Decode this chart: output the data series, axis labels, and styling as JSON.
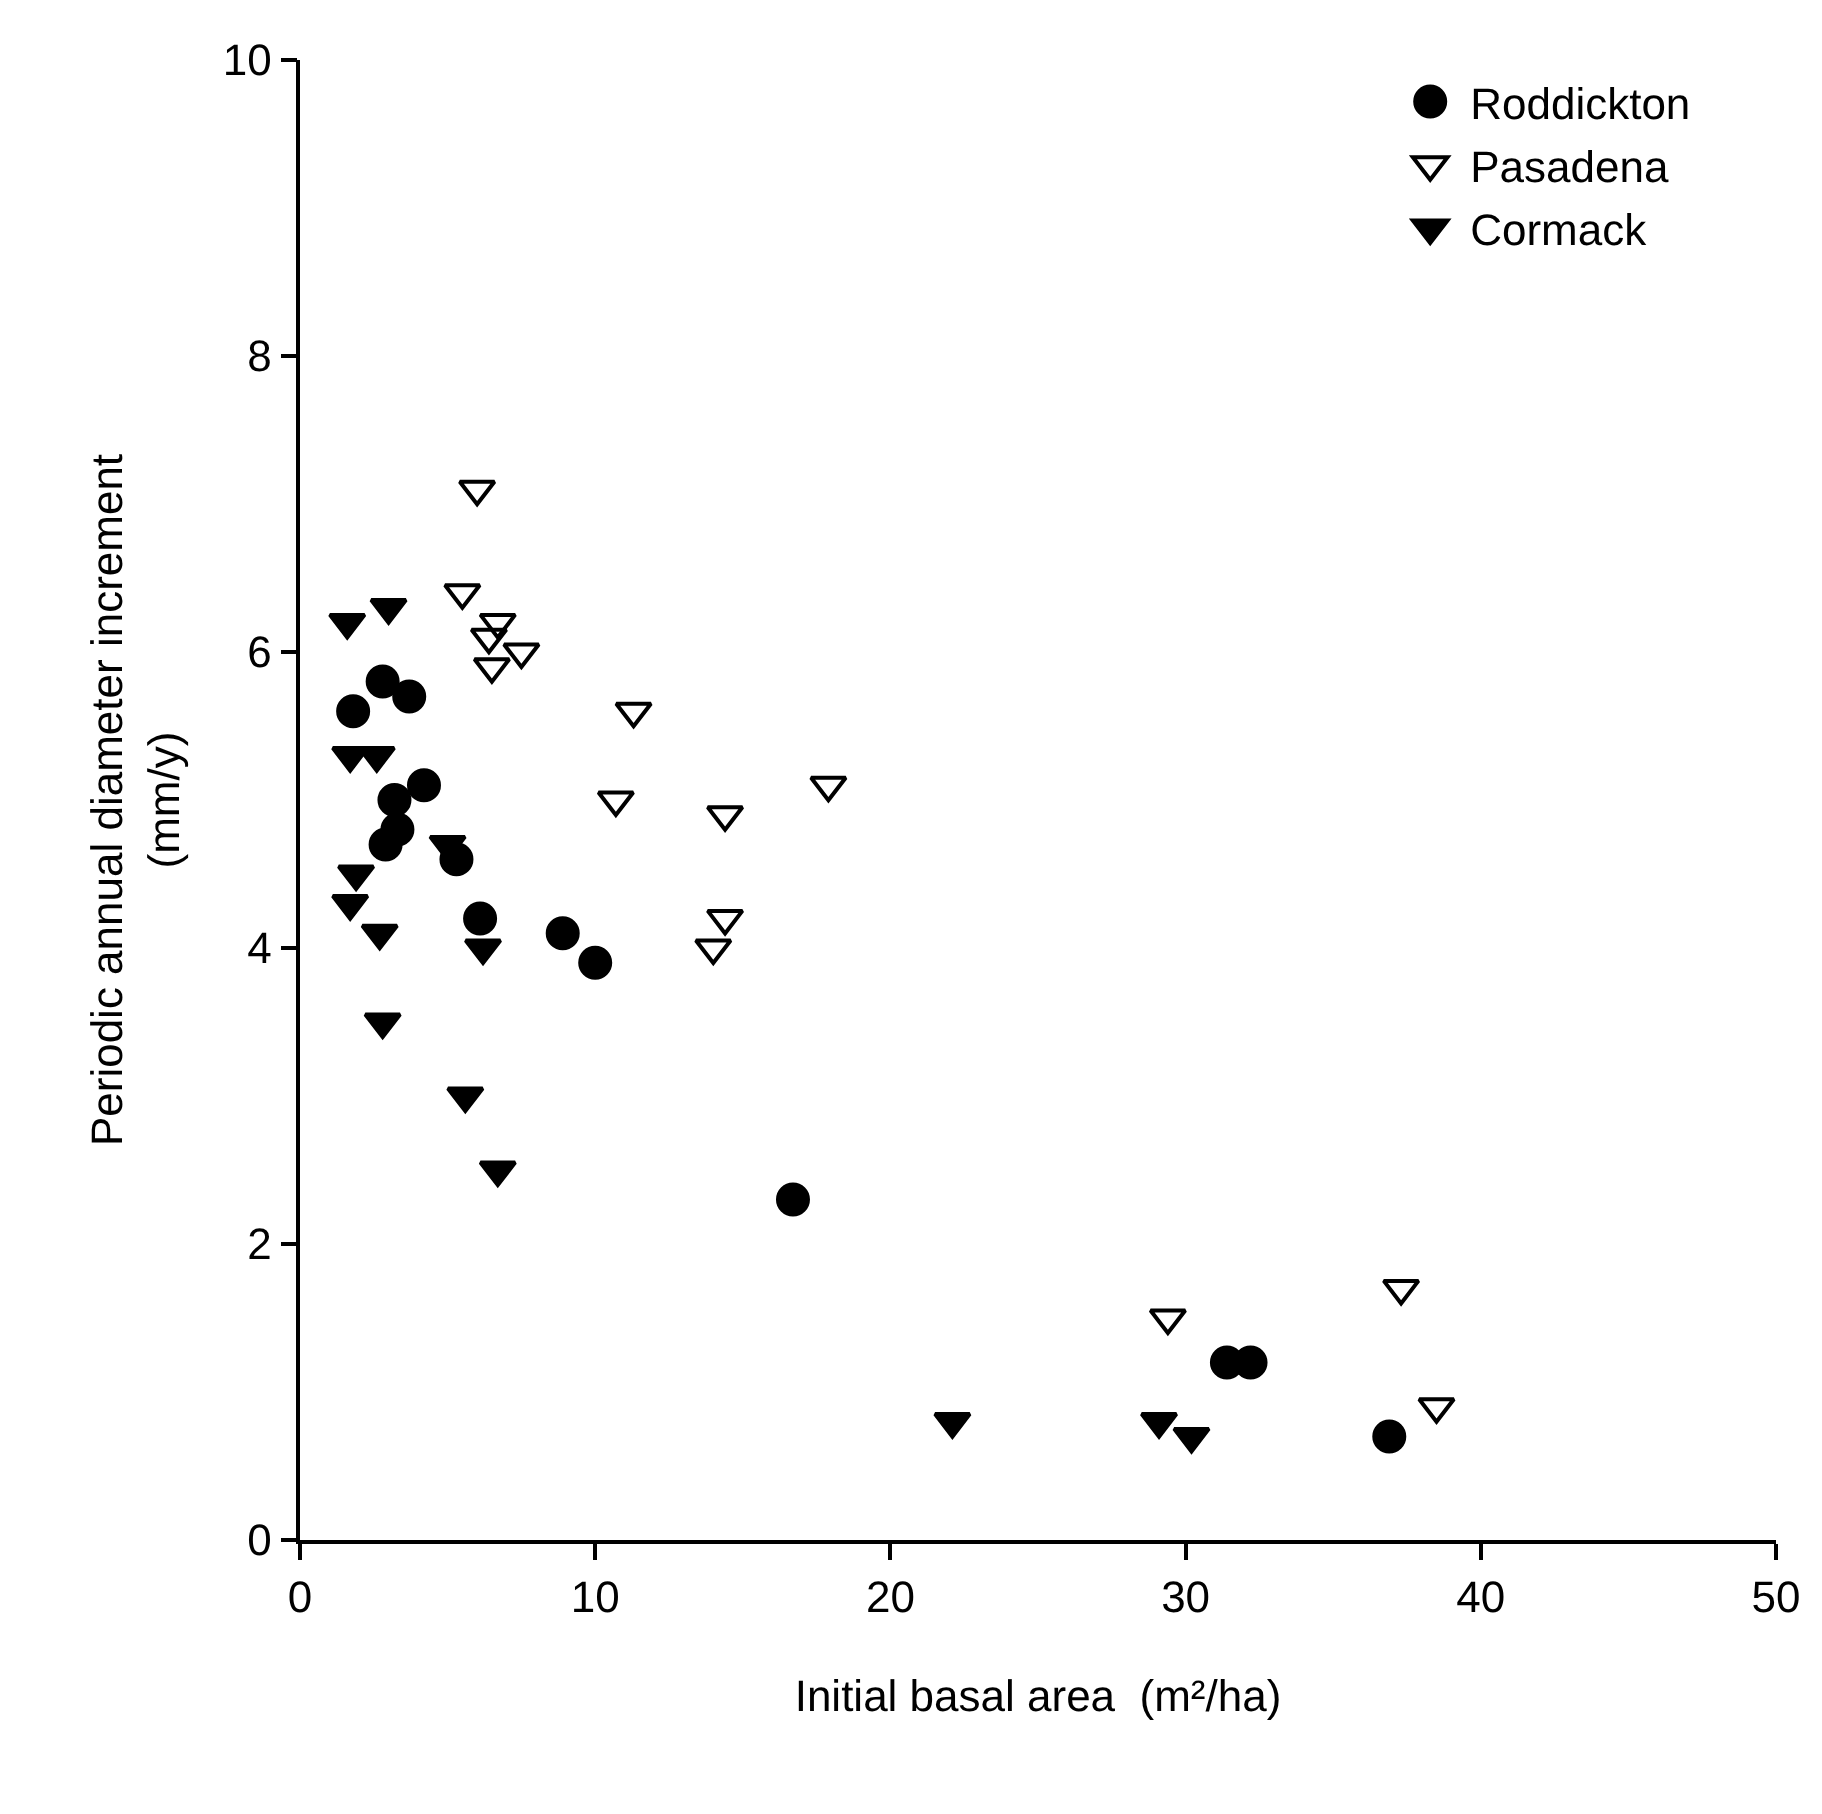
{
  "chart_data": {
    "type": "scatter",
    "xlabel": "Initial basal area  (m²/ha)",
    "ylabel": "Periodic annual diameter increment\n(mm/y)",
    "xlim": [
      0,
      50
    ],
    "xticks": [
      0,
      10,
      20,
      30,
      40,
      50
    ],
    "ylim": [
      0,
      10
    ],
    "yticks": [
      0,
      2,
      4,
      6,
      8,
      10
    ],
    "legend": "top right",
    "series": [
      {
        "name": "Roddickton",
        "color": "#000000",
        "marker": "circle",
        "x": [
          1.8,
          2.8,
          3.7,
          4.2,
          3.2,
          3.3,
          2.9,
          5.3,
          6.1,
          8.9,
          10.0,
          16.7,
          31.4,
          32.2,
          36.9
        ],
        "values": [
          5.6,
          5.8,
          5.7,
          5.1,
          5.0,
          4.8,
          4.7,
          4.6,
          4.2,
          4.1,
          3.9,
          2.3,
          1.2,
          1.2,
          0.7
        ]
      },
      {
        "name": "Pasadena",
        "color": "#000000",
        "marker": "triangle-open",
        "x": [
          6.0,
          5.5,
          6.7,
          6.4,
          7.5,
          6.5,
          11.3,
          17.9,
          10.7,
          14.4,
          14.4,
          14.0,
          29.4,
          37.3,
          38.5
        ],
        "values": [
          7.1,
          6.4,
          6.2,
          6.1,
          6.0,
          5.9,
          5.6,
          5.1,
          5.0,
          4.9,
          4.2,
          4.0,
          1.5,
          1.7,
          0.9
        ]
      },
      {
        "name": "Cormack",
        "color": "#000000",
        "marker": "triangle",
        "x": [
          1.6,
          3.0,
          1.7,
          2.6,
          1.9,
          1.7,
          2.7,
          6.2,
          2.8,
          5.6,
          6.7,
          5.0,
          22.1,
          29.1,
          30.2
        ],
        "values": [
          6.2,
          6.3,
          5.3,
          5.3,
          4.5,
          4.3,
          4.1,
          4.0,
          3.5,
          3.0,
          2.5,
          4.7,
          0.8,
          0.8,
          0.7
        ]
      }
    ]
  }
}
